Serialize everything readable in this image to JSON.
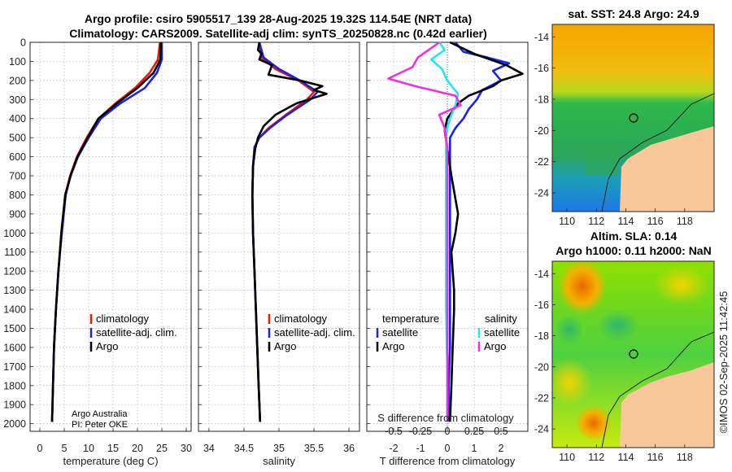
{
  "header": {
    "title_line1": "Argo profile: csiro 5905517_139 28-Aug-2025 19.32S 114.54E (NRT data)",
    "title_line2": "Climatology: CARS2009. Satellite-adj clim: synTS_20250828.nc (0.42d earlier)"
  },
  "credit": {
    "line1": "Argo Australia",
    "line2": "PI: Peter OKE"
  },
  "watermark": "©IMOS 02-Sep-2025 11:42:45",
  "colors": {
    "climatology": "#e81b00",
    "satellite": "#1a22e6",
    "argo": "#000000",
    "sat_salinity": "#22e6f0",
    "argo_salinity": "#f030e0"
  },
  "chart_data": [
    {
      "id": "temperature",
      "type": "line",
      "xlabel": "temperature (deg C)",
      "ylabel": "",
      "xlim": [
        -2,
        31
      ],
      "ylim": [
        2040,
        0
      ],
      "xticks": [
        0,
        5,
        10,
        15,
        20,
        25,
        30
      ],
      "yticks": [
        0,
        100,
        200,
        300,
        400,
        500,
        600,
        700,
        800,
        900,
        1000,
        1100,
        1200,
        1300,
        1400,
        1500,
        1600,
        1700,
        1800,
        1900,
        2000
      ],
      "legend": [
        "climatology",
        "satellite-adj. clim.",
        "Argo"
      ],
      "series": [
        {
          "name": "climatology",
          "color": "#e81b00",
          "x": [
            24.6,
            24.2,
            22.5,
            19.5,
            15.5,
            12.0,
            9.6,
            7.6,
            6.2,
            5.2,
            4.4,
            3.8,
            3.3,
            2.9,
            2.5
          ],
          "y": [
            0,
            90,
            160,
            240,
            320,
            400,
            500,
            600,
            700,
            800,
            1000,
            1200,
            1400,
            1600,
            1990
          ]
        },
        {
          "name": "satellite-adj. clim.",
          "color": "#1a22e6",
          "x": [
            25.0,
            25.0,
            24.0,
            21.5,
            16.5,
            12.5,
            10.0,
            7.8,
            6.3,
            5.3,
            4.5,
            3.8,
            3.3,
            2.9,
            2.5
          ],
          "y": [
            0,
            90,
            160,
            240,
            320,
            400,
            500,
            600,
            700,
            800,
            1000,
            1200,
            1400,
            1600,
            1990
          ]
        },
        {
          "name": "Argo",
          "color": "#000000",
          "x": [
            24.8,
            24.7,
            23.3,
            20.0,
            15.8,
            12.0,
            9.8,
            7.7,
            6.3,
            5.2,
            4.4,
            3.8,
            3.3,
            2.9,
            2.5
          ],
          "y": [
            0,
            90,
            160,
            240,
            320,
            400,
            500,
            600,
            700,
            800,
            1000,
            1200,
            1400,
            1600,
            1990
          ]
        }
      ]
    },
    {
      "id": "salinity",
      "type": "line",
      "xlabel": "salinity",
      "xlim": [
        33.85,
        36.15
      ],
      "ylim": [
        2040,
        0
      ],
      "xticks": [
        34,
        34.5,
        35,
        35.5,
        36
      ],
      "legend": [
        "climatology",
        "satellite-adj. clim.",
        "Argo"
      ],
      "series": [
        {
          "name": "climatology",
          "color": "#e81b00",
          "x": [
            34.72,
            34.75,
            34.95,
            35.28,
            35.5,
            35.4,
            35.1,
            34.85,
            34.72,
            34.65,
            34.63,
            34.62,
            34.63,
            34.65,
            34.67,
            34.69,
            34.71,
            34.73
          ],
          "y": [
            0,
            80,
            140,
            200,
            260,
            300,
            380,
            450,
            500,
            550,
            650,
            800,
            1000,
            1200,
            1400,
            1600,
            1800,
            1990
          ]
        },
        {
          "name": "satellite-adj. clim.",
          "color": "#1a22e6",
          "x": [
            34.72,
            34.78,
            35.0,
            35.3,
            35.55,
            35.45,
            35.12,
            34.87,
            34.72,
            34.65,
            34.63,
            34.62,
            34.63,
            34.65,
            34.67,
            34.69,
            34.71,
            34.73
          ],
          "y": [
            0,
            80,
            140,
            200,
            260,
            300,
            380,
            450,
            500,
            550,
            650,
            800,
            1000,
            1200,
            1400,
            1600,
            1800,
            1990
          ]
        },
        {
          "name": "Argo",
          "color": "#000000",
          "x": [
            34.72,
            34.7,
            34.75,
            34.72,
            34.9,
            34.85,
            35.3,
            35.62,
            35.5,
            35.68,
            35.25,
            34.95,
            34.78,
            34.7,
            34.66,
            34.63,
            34.62,
            34.63,
            34.65,
            34.67,
            34.69,
            34.71,
            34.73
          ],
          "y": [
            0,
            40,
            60,
            90,
            120,
            170,
            200,
            230,
            250,
            270,
            320,
            380,
            440,
            500,
            560,
            650,
            800,
            1000,
            1200,
            1400,
            1600,
            1800,
            1990
          ]
        }
      ]
    },
    {
      "id": "difference",
      "type": "line",
      "xlabel": "T difference from climatology",
      "top_label": "S difference from climatology",
      "xlim": [
        -3,
        3
      ],
      "ylim": [
        2040,
        0
      ],
      "xticks": [
        -2,
        -1,
        0,
        1,
        2
      ],
      "top_ticks": [
        "-0.5",
        "-0.25",
        "0",
        "0.25",
        "0.5"
      ],
      "top_tick_positions": [
        -2,
        -1,
        0,
        1,
        2
      ],
      "legend_temperature_title": "temperature",
      "legend_salinity_title": "salinity",
      "legend": [
        "satellite",
        "Argo",
        "satellite",
        "Argo"
      ],
      "series": [
        {
          "name": "T satellite",
          "color": "#1a22e6",
          "x": [
            0.3,
            0.6,
            1.5,
            2.3,
            1.7,
            2.0,
            1.3,
            1.1,
            0.8,
            0.6,
            0.3,
            0.1,
            0.1,
            0.1,
            0.1,
            0.1,
            0.1,
            0.1,
            0.05,
            0.05
          ],
          "y": [
            0,
            50,
            80,
            110,
            150,
            200,
            250,
            300,
            350,
            400,
            450,
            500,
            550,
            600,
            800,
            1000,
            1300,
            1600,
            1800,
            1990
          ]
        },
        {
          "name": "T Argo",
          "color": "#000000",
          "x": [
            0.1,
            1.0,
            2.2,
            2.8,
            2.0,
            1.7,
            0.8,
            0.4,
            0.0,
            -0.1,
            0.0,
            0.15,
            0.4,
            0.3,
            0.15,
            0.2,
            0.25,
            0.25,
            0.2,
            0.15,
            0.1
          ],
          "y": [
            0,
            60,
            120,
            165,
            200,
            230,
            280,
            320,
            400,
            460,
            560,
            700,
            900,
            1000,
            1100,
            1200,
            1300,
            1400,
            1600,
            1800,
            1990
          ]
        },
        {
          "name": "S satellite",
          "color": "#22e6f0",
          "x": [
            -0.3,
            -0.1,
            -0.6,
            -0.2,
            0.0,
            0.4,
            0.3,
            0.1,
            0.0,
            -0.05,
            -0.05,
            -0.05,
            -0.05,
            0.0,
            0.0
          ],
          "y": [
            0,
            40,
            90,
            140,
            200,
            270,
            330,
            400,
            450,
            500,
            700,
            1000,
            1400,
            1700,
            1990
          ]
        },
        {
          "name": "S Argo",
          "color": "#f030e0",
          "x": [
            -0.3,
            -0.7,
            -1.1,
            -1.3,
            -2.2,
            -1.2,
            0.3,
            0.5,
            -0.3,
            -0.1,
            0.0,
            0.0,
            0.0,
            0.0,
            0.0
          ],
          "y": [
            0,
            40,
            80,
            130,
            190,
            230,
            280,
            330,
            380,
            450,
            550,
            800,
            1200,
            1600,
            1990
          ]
        }
      ]
    },
    {
      "id": "sst_map",
      "type": "heatmap",
      "title": "sat. SST: 24.8 Argo: 24.9",
      "xticks": [
        110,
        112,
        114,
        116,
        118
      ],
      "yticks": [
        -14,
        -16,
        -18,
        -20,
        -22,
        -24
      ],
      "xlim": [
        109,
        120
      ],
      "ylim": [
        -25.2,
        -13.2
      ],
      "marker": {
        "lon": 114.54,
        "lat": -19.32
      }
    },
    {
      "id": "sla_map",
      "type": "heatmap",
      "title_line1": "Altim. SLA: 0.14",
      "title_line2": "Argo h1000: 0.11 h2000: NaN",
      "xticks": [
        110,
        112,
        114,
        116,
        118
      ],
      "yticks": [
        -14,
        -16,
        -18,
        -20,
        -22,
        -24
      ],
      "xlim": [
        109,
        120
      ],
      "ylim": [
        -25.2,
        -13.2
      ],
      "marker": {
        "lon": 114.54,
        "lat": -19.32
      }
    }
  ]
}
